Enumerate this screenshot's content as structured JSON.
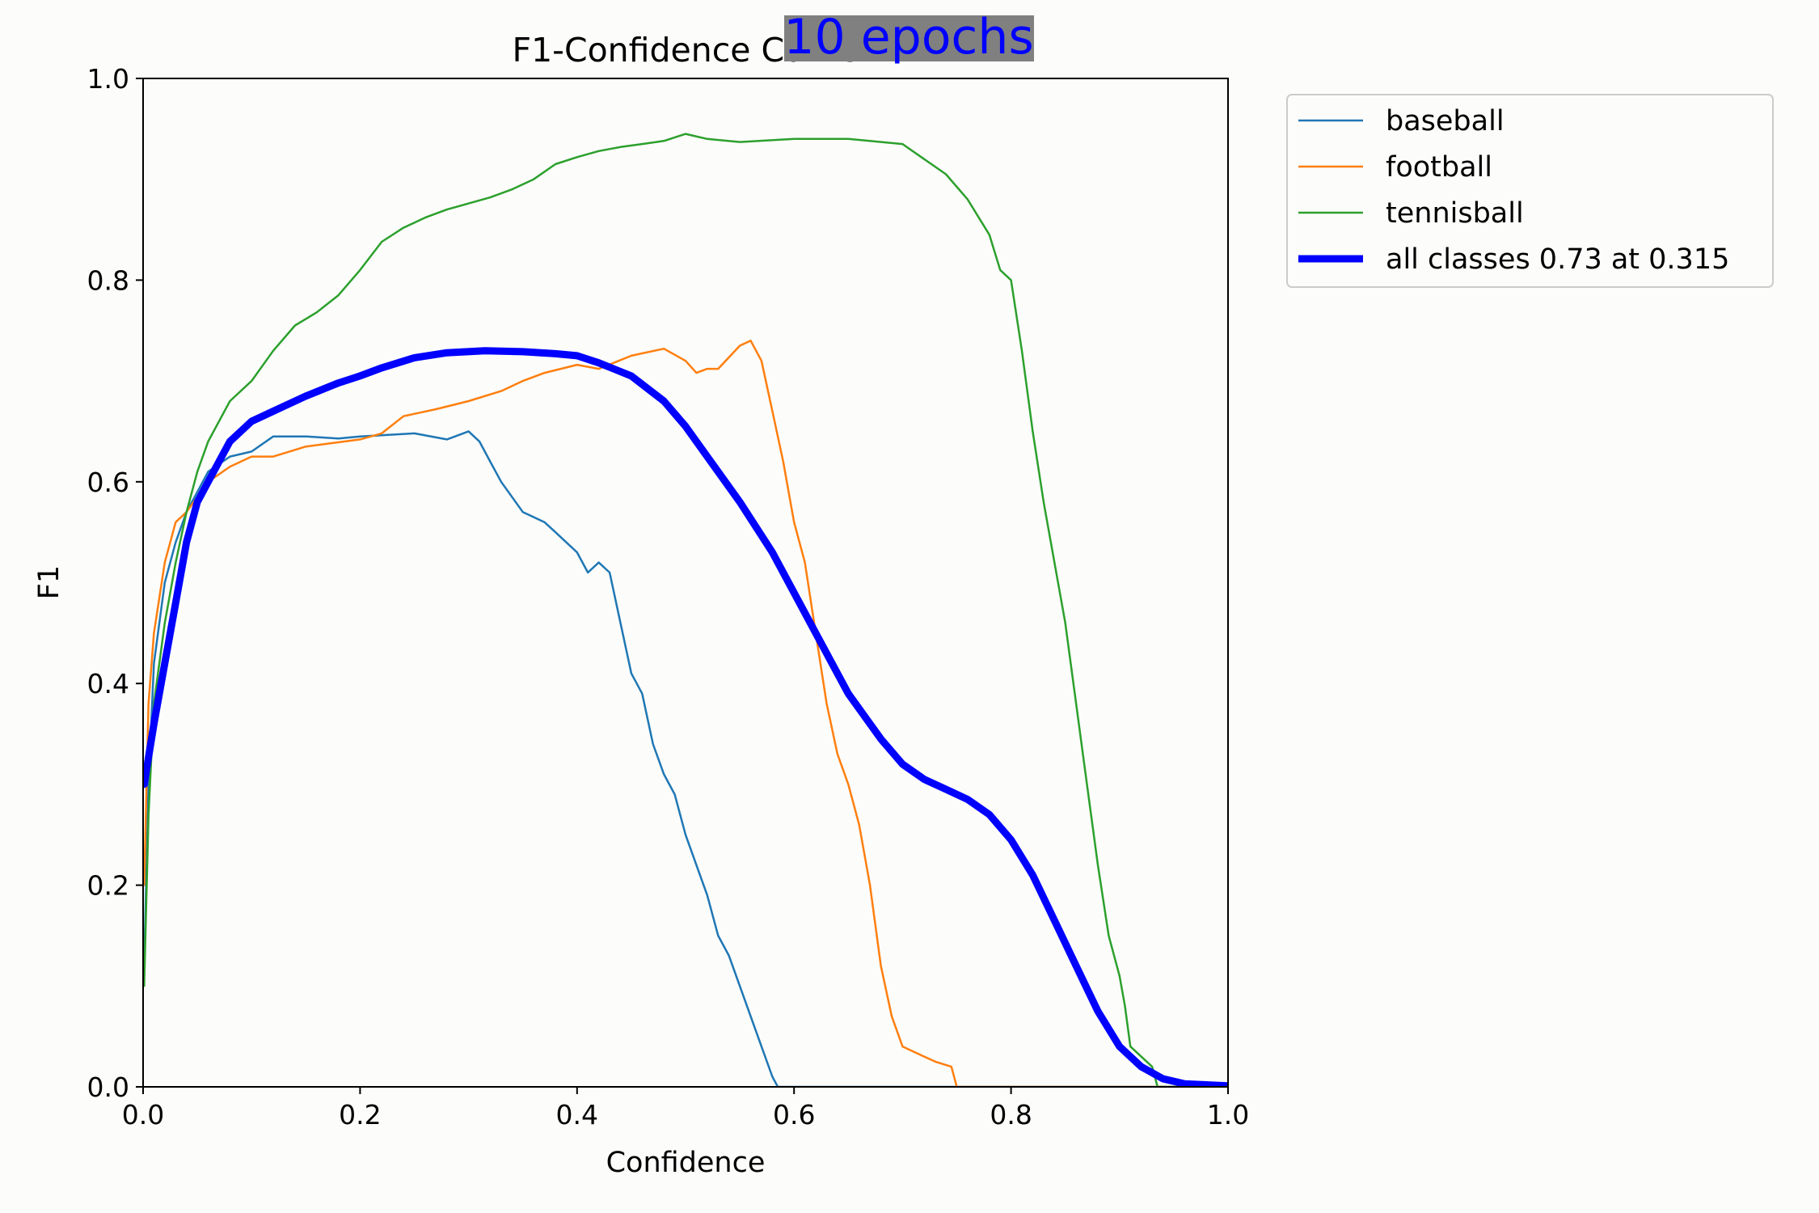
{
  "overlay": {
    "text": "10 epochs",
    "background": "#808080",
    "color": "#0000ff"
  },
  "chart_data": {
    "type": "line",
    "title": "F1-Confidence Curve",
    "xlabel": "Confidence",
    "ylabel": "F1",
    "xlim": [
      0.0,
      1.0
    ],
    "ylim": [
      0.0,
      1.0
    ],
    "xticks": [
      "0.0",
      "0.2",
      "0.4",
      "0.6",
      "0.8",
      "1.0"
    ],
    "yticks": [
      "0.0",
      "0.2",
      "0.4",
      "0.6",
      "0.8",
      "1.0"
    ],
    "grid": false,
    "legend_position": "outside-top-right",
    "series": [
      {
        "name": "baseball",
        "color": "#1f77b4",
        "width": 2.5,
        "x": [
          0.001,
          0.005,
          0.01,
          0.02,
          0.03,
          0.04,
          0.05,
          0.06,
          0.08,
          0.1,
          0.12,
          0.15,
          0.18,
          0.2,
          0.25,
          0.28,
          0.3,
          0.31,
          0.32,
          0.33,
          0.35,
          0.37,
          0.38,
          0.4,
          0.41,
          0.42,
          0.43,
          0.44,
          0.45,
          0.46,
          0.47,
          0.48,
          0.49,
          0.5,
          0.51,
          0.52,
          0.53,
          0.54,
          0.55,
          0.56,
          0.57,
          0.58,
          0.585,
          0.59,
          0.65,
          0.75,
          0.85,
          1.0
        ],
        "y": [
          0.12,
          0.3,
          0.42,
          0.5,
          0.54,
          0.57,
          0.59,
          0.61,
          0.625,
          0.63,
          0.645,
          0.645,
          0.643,
          0.645,
          0.648,
          0.642,
          0.65,
          0.64,
          0.62,
          0.6,
          0.57,
          0.56,
          0.55,
          0.53,
          0.51,
          0.52,
          0.51,
          0.46,
          0.41,
          0.39,
          0.34,
          0.31,
          0.29,
          0.25,
          0.22,
          0.19,
          0.15,
          0.13,
          0.1,
          0.07,
          0.04,
          0.01,
          0.0,
          0.0,
          0.0,
          0.0,
          0.0,
          0.0
        ]
      },
      {
        "name": "football",
        "color": "#ff7f0e",
        "width": 2.5,
        "x": [
          0.001,
          0.005,
          0.01,
          0.02,
          0.03,
          0.04,
          0.05,
          0.06,
          0.08,
          0.1,
          0.12,
          0.15,
          0.2,
          0.22,
          0.24,
          0.27,
          0.3,
          0.33,
          0.35,
          0.37,
          0.4,
          0.42,
          0.45,
          0.48,
          0.5,
          0.51,
          0.52,
          0.53,
          0.55,
          0.56,
          0.57,
          0.58,
          0.59,
          0.6,
          0.61,
          0.62,
          0.63,
          0.64,
          0.65,
          0.66,
          0.67,
          0.68,
          0.69,
          0.7,
          0.71,
          0.73,
          0.745,
          0.75,
          0.8,
          0.9,
          1.0
        ],
        "y": [
          0.2,
          0.38,
          0.45,
          0.52,
          0.56,
          0.57,
          0.585,
          0.6,
          0.615,
          0.625,
          0.625,
          0.635,
          0.642,
          0.648,
          0.665,
          0.672,
          0.68,
          0.69,
          0.7,
          0.708,
          0.716,
          0.712,
          0.725,
          0.732,
          0.72,
          0.708,
          0.712,
          0.712,
          0.735,
          0.74,
          0.72,
          0.67,
          0.62,
          0.56,
          0.52,
          0.45,
          0.38,
          0.33,
          0.3,
          0.26,
          0.2,
          0.12,
          0.07,
          0.04,
          0.035,
          0.025,
          0.02,
          0.0,
          0.0,
          0.0,
          0.0
        ]
      },
      {
        "name": "tennisball",
        "color": "#2ca02c",
        "width": 2.5,
        "x": [
          0.001,
          0.005,
          0.01,
          0.02,
          0.03,
          0.04,
          0.05,
          0.06,
          0.08,
          0.1,
          0.12,
          0.14,
          0.16,
          0.18,
          0.2,
          0.22,
          0.24,
          0.26,
          0.28,
          0.3,
          0.32,
          0.34,
          0.36,
          0.38,
          0.4,
          0.42,
          0.44,
          0.46,
          0.48,
          0.5,
          0.52,
          0.55,
          0.6,
          0.65,
          0.7,
          0.72,
          0.74,
          0.76,
          0.78,
          0.79,
          0.8,
          0.81,
          0.82,
          0.83,
          0.84,
          0.85,
          0.86,
          0.87,
          0.88,
          0.89,
          0.9,
          0.905,
          0.91,
          0.93,
          0.935,
          1.0
        ],
        "y": [
          0.1,
          0.27,
          0.38,
          0.46,
          0.52,
          0.57,
          0.61,
          0.64,
          0.68,
          0.7,
          0.73,
          0.755,
          0.768,
          0.785,
          0.81,
          0.838,
          0.852,
          0.862,
          0.87,
          0.876,
          0.882,
          0.89,
          0.9,
          0.915,
          0.922,
          0.928,
          0.932,
          0.935,
          0.938,
          0.945,
          0.94,
          0.937,
          0.94,
          0.94,
          0.935,
          0.92,
          0.905,
          0.88,
          0.845,
          0.81,
          0.8,
          0.73,
          0.65,
          0.58,
          0.52,
          0.46,
          0.38,
          0.3,
          0.22,
          0.15,
          0.11,
          0.08,
          0.04,
          0.02,
          0.0,
          0.0
        ]
      },
      {
        "name": "all classes 0.73 at 0.315",
        "color": "#0000ff",
        "width": 9,
        "x": [
          0.001,
          0.01,
          0.02,
          0.03,
          0.04,
          0.05,
          0.06,
          0.07,
          0.08,
          0.1,
          0.12,
          0.15,
          0.18,
          0.2,
          0.22,
          0.25,
          0.28,
          0.315,
          0.35,
          0.38,
          0.4,
          0.42,
          0.45,
          0.48,
          0.5,
          0.52,
          0.55,
          0.58,
          0.6,
          0.62,
          0.65,
          0.68,
          0.7,
          0.72,
          0.74,
          0.76,
          0.78,
          0.8,
          0.82,
          0.84,
          0.86,
          0.88,
          0.9,
          0.92,
          0.94,
          0.96,
          1.0
        ],
        "y": [
          0.3,
          0.36,
          0.42,
          0.48,
          0.54,
          0.58,
          0.6,
          0.62,
          0.64,
          0.66,
          0.67,
          0.685,
          0.698,
          0.705,
          0.713,
          0.723,
          0.728,
          0.73,
          0.729,
          0.727,
          0.725,
          0.718,
          0.705,
          0.68,
          0.655,
          0.625,
          0.58,
          0.53,
          0.49,
          0.45,
          0.39,
          0.345,
          0.32,
          0.305,
          0.295,
          0.285,
          0.27,
          0.245,
          0.21,
          0.165,
          0.12,
          0.075,
          0.04,
          0.02,
          0.008,
          0.003,
          0.001
        ]
      }
    ]
  }
}
